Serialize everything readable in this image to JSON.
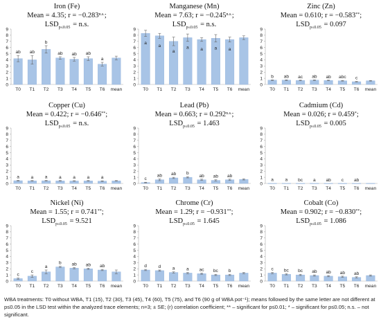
{
  "chart_data": [
    {
      "type": "bar",
      "title": "Iron (Fe)",
      "stats_line": "Mean = 4.35; r = −0.283",
      "stats_sup": "n.s.",
      "stats_tail": ";",
      "lsd_line": "= n.s.",
      "categories": [
        "T0",
        "T1",
        "T2",
        "T3",
        "T4",
        "T5",
        "T6",
        "mean"
      ],
      "values": [
        4.2,
        4.0,
        5.7,
        4.3,
        4.1,
        4.2,
        3.3,
        4.3
      ],
      "errors": [
        0.5,
        0.7,
        0.6,
        0.2,
        0.3,
        0.3,
        0.3,
        0.3
      ],
      "letters": [
        "ab",
        "ab",
        "b",
        "ab",
        "ab",
        "ab",
        "a",
        ""
      ],
      "ylim": [
        0,
        9
      ],
      "yticks": [
        0,
        1,
        2,
        3,
        4,
        5,
        6,
        7,
        8,
        9
      ]
    },
    {
      "type": "bar",
      "title": "Manganese (Mn)",
      "stats_line": "Mean = 7.63; r = −0.245",
      "stats_sup": "n.s.",
      "stats_tail": ";",
      "lsd_line": "= n.s.",
      "categories": [
        "T0",
        "T1",
        "T2",
        "T3",
        "T4",
        "T5",
        "T6",
        "mean"
      ],
      "values": [
        8.3,
        7.9,
        7.0,
        7.6,
        7.3,
        7.5,
        7.3,
        7.6
      ],
      "errors": [
        0.5,
        0.4,
        0.7,
        0.6,
        0.3,
        0.6,
        0.4,
        0.3
      ],
      "letters": [
        "a",
        "a",
        "a",
        "a",
        "a",
        "a",
        "a",
        ""
      ],
      "letters_inside": true,
      "ylim": [
        0,
        9
      ],
      "yticks": [
        0,
        1,
        2,
        3,
        4,
        5,
        6,
        7,
        8,
        9
      ]
    },
    {
      "type": "bar",
      "title": "Zinc (Zn)",
      "stats_line": "Mean = 0.610; r = −0.583",
      "stats_sup": "**",
      "stats_tail": ";",
      "lsd_line": "= 0.097",
      "categories": [
        "T0",
        "T1",
        "T2",
        "T3",
        "T4",
        "T5",
        "T6",
        "mean"
      ],
      "values": [
        0.7,
        0.7,
        0.65,
        0.7,
        0.65,
        0.6,
        0.45,
        0.6
      ],
      "errors": [
        0.05,
        0.05,
        0.05,
        0.05,
        0.05,
        0.05,
        0.05,
        0.05
      ],
      "letters": [
        "b",
        "ab",
        "ac",
        "ab",
        "ab",
        "abc",
        "c",
        ""
      ],
      "ylim": [
        0,
        9
      ],
      "yticks": [
        0,
        1,
        2,
        3,
        4,
        5,
        6,
        7,
        8,
        9
      ]
    },
    {
      "type": "bar",
      "title": "Copper (Cu)",
      "stats_line": "Mean = 0.422; r = −0.646",
      "stats_sup": "**",
      "stats_tail": ";",
      "lsd_line": "= n.s.",
      "categories": [
        "T0",
        "T1",
        "T2",
        "T3",
        "T4",
        "T5",
        "T6",
        "mean"
      ],
      "values": [
        0.45,
        0.42,
        0.44,
        0.42,
        0.4,
        0.42,
        0.38,
        0.42
      ],
      "errors": [
        0.05,
        0.05,
        0.05,
        0.05,
        0.05,
        0.05,
        0.05,
        0.05
      ],
      "letters": [
        "a",
        "a",
        "a",
        "a",
        "a",
        "a",
        "a",
        ""
      ],
      "ylim": [
        0,
        9
      ],
      "yticks": [
        0,
        1,
        2,
        3,
        4,
        5,
        6,
        7,
        8,
        9
      ]
    },
    {
      "type": "bar",
      "title": "Lead (Pb)",
      "stats_line": "Mean = 0.663; r = 0.292",
      "stats_sup": "n.s.",
      "stats_tail": ";",
      "lsd_line": "= 1.463",
      "categories": [
        "T0",
        "T1",
        "T2",
        "T3",
        "T4",
        "T5",
        "T6",
        "mean"
      ],
      "values": [
        0.15,
        0.6,
        0.9,
        1.0,
        0.6,
        0.5,
        0.6,
        0.66
      ],
      "errors": [
        0.05,
        0.15,
        0.1,
        0.1,
        0.1,
        0.1,
        0.1,
        0.1
      ],
      "letters": [
        "c",
        "ab",
        "ab",
        "b",
        "ab",
        "ab",
        "ab",
        ""
      ],
      "ylim": [
        0,
        9
      ],
      "yticks": [
        0,
        1,
        2,
        3,
        4,
        5,
        6,
        7,
        8,
        9
      ]
    },
    {
      "type": "bar",
      "title": "Cadmium (Cd)",
      "stats_line": "Mean = 0.026; r = 0.459",
      "stats_sup": "*",
      "stats_tail": ";",
      "lsd_line": "= 0.005",
      "categories": [
        "T0",
        "T1",
        "T2",
        "T3",
        "T4",
        "T5",
        "T6",
        "mean"
      ],
      "values": [
        0.03,
        0.03,
        0.025,
        0.025,
        0.025,
        0.02,
        0.025,
        0.026
      ],
      "errors": [
        0,
        0,
        0,
        0,
        0,
        0,
        0,
        0
      ],
      "letters": [
        "a",
        "a",
        "bc",
        "a",
        "ab",
        "c",
        "ab",
        ""
      ],
      "ylim": [
        0,
        9
      ],
      "yticks": [
        0,
        1,
        2,
        3,
        4,
        5,
        6,
        7,
        8,
        9
      ]
    },
    {
      "type": "bar",
      "title": "Nickel (Ni)",
      "stats_line": "Mean = 1.55; r = 0.741",
      "stats_sup": "**",
      "stats_tail": ";",
      "lsd_line": "= 9.521",
      "categories": [
        "T0",
        "T1",
        "T2",
        "T3",
        "T4",
        "T5",
        "T6",
        "mean"
      ],
      "values": [
        0.4,
        0.8,
        1.5,
        2.3,
        2.1,
        2.0,
        1.8,
        1.5
      ],
      "errors": [
        0.1,
        0.2,
        0.3,
        0.1,
        0.1,
        0.1,
        0.1,
        0.3
      ],
      "letters": [
        "c",
        "c",
        "a",
        "b",
        "ab",
        "ab",
        "ab",
        ""
      ],
      "ylim": [
        0,
        9
      ],
      "yticks": [
        0,
        1,
        2,
        3,
        4,
        5,
        6,
        7,
        8,
        9
      ]
    },
    {
      "type": "bar",
      "title": "Chrome (Cr)",
      "stats_line": "Mean = 1.29; r = −0.931",
      "stats_sup": "**",
      "stats_tail": ";",
      "lsd_line": "= 1.645",
      "categories": [
        "T0",
        "T1",
        "T2",
        "T3",
        "T4",
        "T5",
        "T6",
        "mean"
      ],
      "values": [
        1.8,
        1.7,
        1.4,
        1.3,
        1.2,
        1.0,
        1.0,
        1.3
      ],
      "errors": [
        0.1,
        0.1,
        0.1,
        0.1,
        0.1,
        0.1,
        0.1,
        0.1
      ],
      "letters": [
        "d",
        "d",
        "a",
        "a",
        "ac",
        "bc",
        "b",
        ""
      ],
      "ylim": [
        0,
        9
      ],
      "yticks": [
        0,
        1,
        2,
        3,
        4,
        5,
        6,
        7,
        8,
        9
      ]
    },
    {
      "type": "bar",
      "title": "Cobalt (Co)",
      "stats_line": "Mean = 0.902; r = −0.830",
      "stats_sup": "**",
      "stats_tail": ";",
      "lsd_line": "= 1.086",
      "categories": [
        "T0",
        "T1",
        "T2",
        "T3",
        "T4",
        "T5",
        "T6",
        "mean"
      ],
      "values": [
        1.3,
        1.1,
        1.0,
        0.9,
        0.8,
        0.7,
        0.6,
        0.9
      ],
      "errors": [
        0.1,
        0.1,
        0.1,
        0.1,
        0.1,
        0.1,
        0.1,
        0.1
      ],
      "letters": [
        "c",
        "bc",
        "bc",
        "ab",
        "ab",
        "ab",
        "ab",
        ""
      ],
      "ylim": [
        0,
        9
      ],
      "yticks": [
        0,
        1,
        2,
        3,
        4,
        5,
        6,
        7,
        8,
        9
      ]
    }
  ],
  "lsd_label": "LSD",
  "lsd_sub": "p≤0.05",
  "caption": "WBA treatments: T0 without WBA, T1 (15), T2 (30), T3 (45), T4 (60), T5 (75), and T6 (90 g of WBA pot⁻¹); means followed by the same letter are not different at p≤0.05 in the LSD test within the analyzed trace elements; n=3; ± SE; (r) correlation coefficient; ** – significant for p≤0.01; * – significant for p≤0.05; n.s. – not significant.",
  "colors": {
    "bar": "#a8c4e6",
    "bar_stroke": "#8fb0db",
    "error": "#666666"
  }
}
